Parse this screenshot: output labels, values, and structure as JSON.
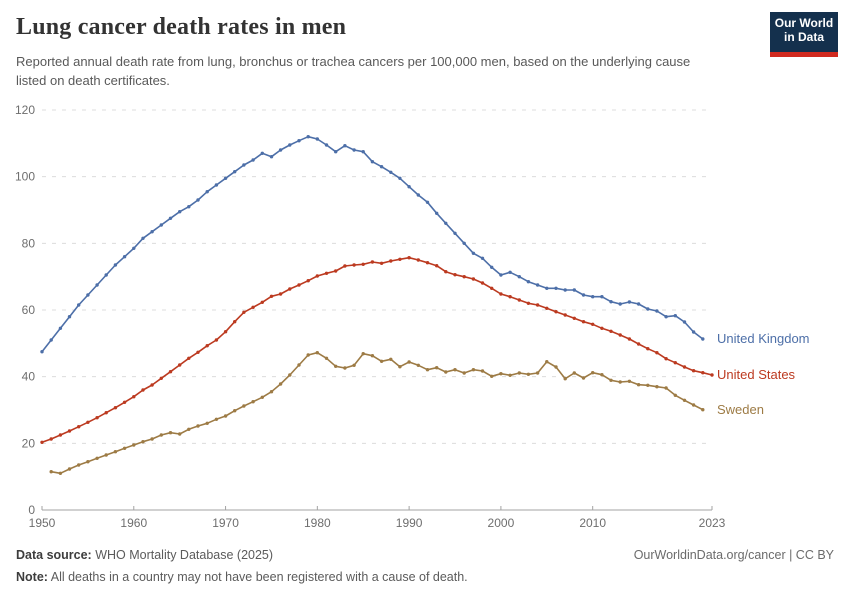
{
  "header": {
    "title": "Lung cancer death rates in men",
    "subtitle": "Reported annual death rate from lung, bronchus or trachea cancers per 100,000 men, based on the underlying cause listed on death certificates.",
    "logo": {
      "line1": "Our World",
      "line2": "in Data",
      "bg": "#14304D",
      "accent": "#D12A1F"
    }
  },
  "chart_data": {
    "type": "line",
    "title": "Lung cancer death rates in men",
    "xlabel": "",
    "ylabel": "",
    "xlim": [
      1950,
      2023
    ],
    "ylim": [
      0,
      120
    ],
    "x_ticks": [
      1950,
      1960,
      1970,
      1980,
      1990,
      2000,
      2010,
      2023
    ],
    "y_ticks": [
      0,
      20,
      40,
      60,
      80,
      100,
      120
    ],
    "grid": "horizontal-dashed",
    "legend_position": "right-of-line-ends",
    "series": [
      {
        "name": "United Kingdom",
        "color": "#4D6FA8",
        "start_year": 1950,
        "values": [
          47.5,
          51,
          54.5,
          58,
          61.5,
          64.5,
          67.5,
          70.5,
          73.5,
          76,
          78.5,
          81.5,
          83.5,
          85.5,
          87.5,
          89.5,
          91,
          93,
          95.5,
          97.5,
          99.5,
          101.5,
          103.5,
          105,
          107,
          106,
          108,
          109.5,
          110.8,
          112,
          111.3,
          109.5,
          107.5,
          109.3,
          108,
          107.5,
          104.5,
          103,
          101.3,
          99.5,
          97,
          94.5,
          92.3,
          89,
          86,
          83,
          80,
          77,
          75.5,
          72.8,
          70.5,
          71.3,
          70,
          68.5,
          67.5,
          66.5,
          66.5,
          66,
          66,
          64.5,
          64,
          64,
          62.5,
          61.8,
          62.4,
          61.8,
          60.3,
          59.7,
          58,
          58.3,
          56.4,
          53.4,
          51.3
        ]
      },
      {
        "name": "United States",
        "color": "#BC3A20",
        "start_year": 1950,
        "values": [
          20.3,
          21.3,
          22.5,
          23.7,
          25,
          26.3,
          27.7,
          29.2,
          30.7,
          32.3,
          34,
          36,
          37.5,
          39.5,
          41.5,
          43.5,
          45.5,
          47.3,
          49.3,
          51,
          53.5,
          56.5,
          59.3,
          60.8,
          62.3,
          64.1,
          64.8,
          66.3,
          67.5,
          68.8,
          70.2,
          71,
          71.7,
          73.2,
          73.5,
          73.7,
          74.4,
          74,
          74.7,
          75.2,
          75.7,
          75,
          74.2,
          73.3,
          71.5,
          70.6,
          70,
          69.3,
          68.1,
          66.5,
          64.8,
          64,
          63,
          62,
          61.5,
          60.5,
          59.5,
          58.5,
          57.5,
          56.5,
          55.7,
          54.5,
          53.6,
          52.5,
          51.3,
          49.8,
          48.4,
          47.2,
          45.4,
          44.2,
          42.9,
          41.8,
          41.2,
          40.5
        ]
      },
      {
        "name": "Sweden",
        "color": "#9D7B45",
        "start_year": 1951,
        "values": [
          11.5,
          11,
          12.3,
          13.5,
          14.5,
          15.5,
          16.5,
          17.5,
          18.5,
          19.5,
          20.5,
          21.3,
          22.5,
          23.2,
          22.8,
          24.2,
          25.2,
          26,
          27.2,
          28.2,
          29.8,
          31.2,
          32.5,
          33.8,
          35.5,
          37.8,
          40.5,
          43.5,
          46.5,
          47.2,
          45.5,
          43.1,
          42.6,
          43.4,
          46.9,
          46.3,
          44.6,
          45.2,
          43,
          44.4,
          43.4,
          42.1,
          42.7,
          41.4,
          42.1,
          41.1,
          42.1,
          41.7,
          40.1,
          40.9,
          40.4,
          41.1,
          40.7,
          41.1,
          44.5,
          42.9,
          39.4,
          41.1,
          39.6,
          41.2,
          40.6,
          38.9,
          38.4,
          38.6,
          37.6,
          37.4,
          37,
          36.6,
          34.4,
          32.9,
          31.5,
          30.1
        ]
      }
    ]
  },
  "footer": {
    "source_label": "Data source:",
    "source_value": " WHO Mortality Database (2025)",
    "note_label": "Note:",
    "note_value": " All deaths in a country may not have been registered with a cause of death.",
    "link": "OurWorldinData.org/cancer | CC BY"
  }
}
